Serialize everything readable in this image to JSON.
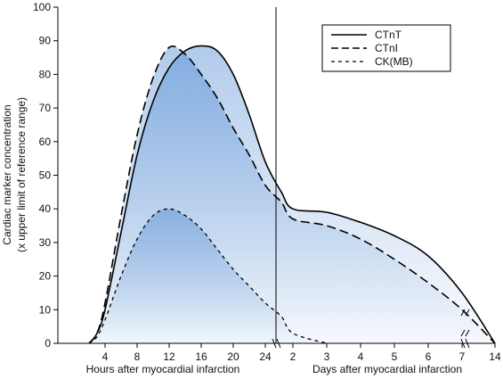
{
  "chart_data": {
    "type": "line",
    "ylabel_line1": "Cardiac marker concentration",
    "ylabel_line2": "(x upper limit of reference range)",
    "xlabel_hours": "Hours after myocardial infarction",
    "xlabel_days": "Days after myocardial infarction",
    "ylim": [
      0,
      100
    ],
    "y_ticks": [
      "0",
      "10",
      "20",
      "30",
      "40",
      "50",
      "60",
      "70",
      "80",
      "90",
      "100"
    ],
    "x_ticks_hours": [
      "4",
      "8",
      "12",
      "16",
      "20",
      "24"
    ],
    "x_ticks_days": [
      "2",
      "3",
      "4",
      "5",
      "6",
      "7",
      "14"
    ],
    "grid": false,
    "legend_position": "top-right",
    "colors": {
      "fill": "#3f7fcf",
      "line": "#000000"
    },
    "series": [
      {
        "name": "CTnT",
        "style": "solid",
        "points": [
          [
            2,
            0
          ],
          [
            3,
            3
          ],
          [
            4,
            10
          ],
          [
            6,
            33
          ],
          [
            8,
            56
          ],
          [
            10,
            72
          ],
          [
            12,
            82
          ],
          [
            14,
            87
          ],
          [
            16,
            88.5
          ],
          [
            18,
            87
          ],
          [
            20,
            80
          ],
          [
            22,
            68
          ],
          [
            24,
            54
          ],
          [
            26,
            45
          ],
          [
            "d2",
            40
          ],
          [
            "d3",
            39
          ],
          [
            "d4",
            36
          ],
          [
            "d5",
            32
          ],
          [
            "d6",
            26
          ],
          [
            "d7",
            15
          ],
          [
            "d14",
            0
          ]
        ]
      },
      {
        "name": "CTnI",
        "style": "dashed",
        "points": [
          [
            2,
            0
          ],
          [
            3,
            3
          ],
          [
            4,
            12
          ],
          [
            6,
            38
          ],
          [
            8,
            62
          ],
          [
            10,
            79
          ],
          [
            12,
            88
          ],
          [
            14,
            86
          ],
          [
            16,
            80
          ],
          [
            18,
            73
          ],
          [
            20,
            64
          ],
          [
            22,
            56
          ],
          [
            24,
            47
          ],
          [
            26,
            42
          ],
          [
            "d2",
            37
          ],
          [
            "d3",
            35
          ],
          [
            "d4",
            31
          ],
          [
            "d5",
            25
          ],
          [
            "d6",
            18
          ],
          [
            "d7",
            10
          ],
          [
            "d14",
            0
          ]
        ]
      },
      {
        "name": "CK(MB)",
        "style": "dotted",
        "points": [
          [
            2,
            0
          ],
          [
            3,
            2
          ],
          [
            4,
            7
          ],
          [
            6,
            20
          ],
          [
            8,
            31
          ],
          [
            10,
            38
          ],
          [
            12,
            40
          ],
          [
            14,
            38
          ],
          [
            16,
            34
          ],
          [
            18,
            28
          ],
          [
            20,
            22
          ],
          [
            22,
            17
          ],
          [
            24,
            12
          ],
          [
            26,
            8
          ],
          [
            "d2",
            3
          ],
          [
            "d3",
            0
          ]
        ]
      }
    ]
  }
}
